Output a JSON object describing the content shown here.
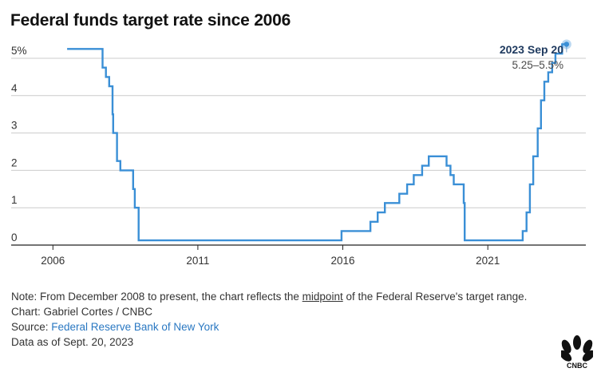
{
  "header": {
    "title": "Federal funds target rate since 2006"
  },
  "chart_data": {
    "type": "line",
    "title": "Federal funds target rate since 2006",
    "xlabel": "",
    "ylabel": "",
    "x_ticks": [
      "2006",
      "2011",
      "2016",
      "2021"
    ],
    "y_ticks": [
      "0",
      "1",
      "2",
      "3",
      "4",
      "5%"
    ],
    "ylim": [
      0,
      5.5
    ],
    "xlim": [
      "2005-01-01",
      "2023-12-31"
    ],
    "grid": "horizontal",
    "color": "#3a8fd6",
    "step": true,
    "series": [
      {
        "values": [
          {
            "date": "2006-06-29",
            "rate": 5.25
          },
          {
            "date": "2007-09-18",
            "rate": 4.75
          },
          {
            "date": "2007-10-31",
            "rate": 4.5
          },
          {
            "date": "2007-12-11",
            "rate": 4.25
          },
          {
            "date": "2008-01-22",
            "rate": 3.5
          },
          {
            "date": "2008-01-30",
            "rate": 3.0
          },
          {
            "date": "2008-03-18",
            "rate": 2.25
          },
          {
            "date": "2008-04-30",
            "rate": 2.0
          },
          {
            "date": "2008-10-08",
            "rate": 1.5
          },
          {
            "date": "2008-10-29",
            "rate": 1.0
          },
          {
            "date": "2008-12-16",
            "rate": 0.125
          },
          {
            "date": "2015-12-16",
            "rate": 0.375
          },
          {
            "date": "2016-12-14",
            "rate": 0.625
          },
          {
            "date": "2017-03-15",
            "rate": 0.875
          },
          {
            "date": "2017-06-14",
            "rate": 1.125
          },
          {
            "date": "2017-12-13",
            "rate": 1.375
          },
          {
            "date": "2018-03-21",
            "rate": 1.625
          },
          {
            "date": "2018-06-13",
            "rate": 1.875
          },
          {
            "date": "2018-09-26",
            "rate": 2.125
          },
          {
            "date": "2018-12-19",
            "rate": 2.375
          },
          {
            "date": "2019-07-31",
            "rate": 2.125
          },
          {
            "date": "2019-09-18",
            "rate": 1.875
          },
          {
            "date": "2019-10-30",
            "rate": 1.625
          },
          {
            "date": "2020-03-03",
            "rate": 1.125
          },
          {
            "date": "2020-03-15",
            "rate": 0.125
          },
          {
            "date": "2022-03-16",
            "rate": 0.375
          },
          {
            "date": "2022-05-04",
            "rate": 0.875
          },
          {
            "date": "2022-06-15",
            "rate": 1.625
          },
          {
            "date": "2022-07-27",
            "rate": 2.375
          },
          {
            "date": "2022-09-21",
            "rate": 3.125
          },
          {
            "date": "2022-11-02",
            "rate": 3.875
          },
          {
            "date": "2022-12-14",
            "rate": 4.375
          },
          {
            "date": "2023-02-01",
            "rate": 4.625
          },
          {
            "date": "2023-03-22",
            "rate": 4.875
          },
          {
            "date": "2023-05-03",
            "rate": 5.125
          },
          {
            "date": "2023-07-26",
            "rate": 5.375
          },
          {
            "date": "2023-09-20",
            "rate": 5.375
          }
        ]
      }
    ],
    "annotation": {
      "date": "2023-09-20",
      "rate": 5.375,
      "label": "2023 Sep 20",
      "sublabel": "5.25–5.5%"
    }
  },
  "footer": {
    "note_prefix": "Note: From December 2008 to present, the chart reflects the ",
    "note_underlined": "midpoint",
    "note_suffix": " of the Federal Reserve's target range.",
    "credit": "Chart: Gabriel Cortes / CNBC",
    "source_prefix": "Source: ",
    "source_link": "Federal Reserve Bank of New York",
    "data_as_of": "Data as of Sept. 20, 2023"
  },
  "logo": {
    "name": "CNBC"
  }
}
